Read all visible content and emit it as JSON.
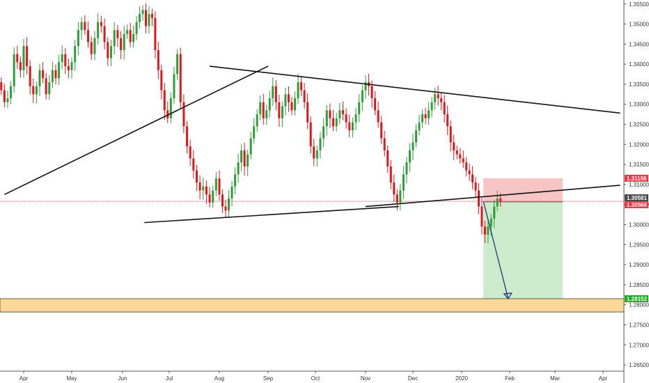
{
  "chart_data": {
    "type": "candlestick",
    "instrument_note": "",
    "xlabel": "",
    "ylabel": "",
    "ylim": [
      1.2605,
      1.356
    ],
    "grid": false,
    "x_ticks": [
      "Apr",
      "May",
      "Jun",
      "Jul",
      "Aug",
      "Sep",
      "Oct",
      "Nov",
      "Dec",
      "2020",
      "Feb",
      "Mar",
      "Apr"
    ],
    "y_ticks": [
      "1.35500",
      "1.35000",
      "1.34500",
      "1.34000",
      "1.33500",
      "1.33000",
      "1.32500",
      "1.32000",
      "1.31500",
      "1.31000",
      "1.30500",
      "1.30000",
      "1.29500",
      "1.29000",
      "1.28500",
      "1.28000",
      "1.27500",
      "1.27000",
      "1.26500"
    ],
    "y_tick_values": [
      1.355,
      1.35,
      1.345,
      1.34,
      1.335,
      1.33,
      1.325,
      1.32,
      1.315,
      1.31,
      1.305,
      1.3,
      1.295,
      1.29,
      1.285,
      1.28,
      1.275,
      1.27,
      1.265
    ],
    "price_tags": [
      {
        "label": "1.31156",
        "value": 1.31156,
        "color": "#f23645"
      },
      {
        "label": "1.30581",
        "value": 1.30581,
        "color": "#4a4a4a"
      },
      {
        "label": "1.30566",
        "value": 1.30566,
        "color": "#f23645"
      },
      {
        "label": "1.28152",
        "value": 1.28152,
        "color": "#22ab23"
      }
    ],
    "candles_close": [
      1.3335,
      1.3305,
      1.3315,
      1.3345,
      1.3425,
      1.3405,
      1.3385,
      1.3445,
      1.3395,
      1.3345,
      1.3325,
      1.3345,
      1.3385,
      1.3365,
      1.3325,
      1.3355,
      1.3385,
      1.3365,
      1.3405,
      1.3425,
      1.3395,
      1.3385,
      1.3405,
      1.3445,
      1.3485,
      1.3505,
      1.3485,
      1.3455,
      1.3425,
      1.3465,
      1.3505,
      1.3495,
      1.3455,
      1.3415,
      1.3445,
      1.3485,
      1.3465,
      1.3435,
      1.3475,
      1.3485,
      1.3455,
      1.3475,
      1.3505,
      1.3525,
      1.3535,
      1.3495,
      1.3525,
      1.3515,
      1.3435,
      1.3385,
      1.3335,
      1.3285,
      1.3265,
      1.3315,
      1.3375,
      1.3425,
      1.3305,
      1.3245,
      1.3195,
      1.3165,
      1.3135,
      1.3105,
      1.3085,
      1.3095,
      1.3075,
      1.3055,
      1.3085,
      1.3115,
      1.3075,
      1.3045,
      1.3035,
      1.3065,
      1.3095,
      1.3125,
      1.3155,
      1.3185,
      1.3145,
      1.3175,
      1.3215,
      1.3245,
      1.3275,
      1.3305,
      1.3265,
      1.3285,
      1.3315,
      1.3345,
      1.3305,
      1.3265,
      1.3295,
      1.3325,
      1.3305,
      1.3285,
      1.3315,
      1.3355,
      1.3335,
      1.3305,
      1.3255,
      1.3195,
      1.3165,
      1.3185,
      1.3215,
      1.3245,
      1.3285,
      1.3265,
      1.3245,
      1.3265,
      1.3285,
      1.3275,
      1.3255,
      1.3235,
      1.3255,
      1.3275,
      1.3305,
      1.3335,
      1.3355,
      1.3345,
      1.3315,
      1.3285,
      1.3255,
      1.3215,
      1.3185,
      1.3145,
      1.3105,
      1.3075,
      1.3055,
      1.3085,
      1.3125,
      1.3155,
      1.3185,
      1.3205,
      1.3235,
      1.3255,
      1.3275,
      1.3265,
      1.3285,
      1.3305,
      1.3325,
      1.3315,
      1.3305,
      1.3275,
      1.3245,
      1.3205,
      1.3185,
      1.3175,
      1.3165,
      1.3155,
      1.3135,
      1.3125,
      1.3105,
      1.3085,
      1.3045,
      1.2995,
      1.2975,
      1.2995,
      1.3015,
      1.3045,
      1.3065,
      1.3058
    ]
  },
  "drawings": {
    "upper_trendline": {
      "from": {
        "date": "2019-07-26",
        "price": 1.3395
      },
      "to": {
        "date": "2020-04-12",
        "price": 1.3278
      }
    },
    "lower_channel_line": {
      "from": {
        "date": "2019-06-15",
        "price": 1.3005
      },
      "to": {
        "date": "2019-11-22",
        "price": 1.3045
      }
    },
    "rising_trendline": {
      "from": {
        "date": "2019-03-20",
        "price": 1.3075
      },
      "to": {
        "date": "2019-09-01",
        "price": 1.3395
      }
    },
    "breakout_line": {
      "from": {
        "date": "2019-11-01",
        "price": 1.3045
      },
      "to": {
        "date": "2020-04-12",
        "price": 1.3098
      }
    },
    "stop_zone": {
      "top": 1.31156,
      "bottom": 1.30566
    },
    "target_zone": {
      "top": 1.30566,
      "bottom": 1.28152
    },
    "support_zone": {
      "top": 1.28152,
      "bottom": 1.2782
    },
    "entry_price": 1.30581
  }
}
